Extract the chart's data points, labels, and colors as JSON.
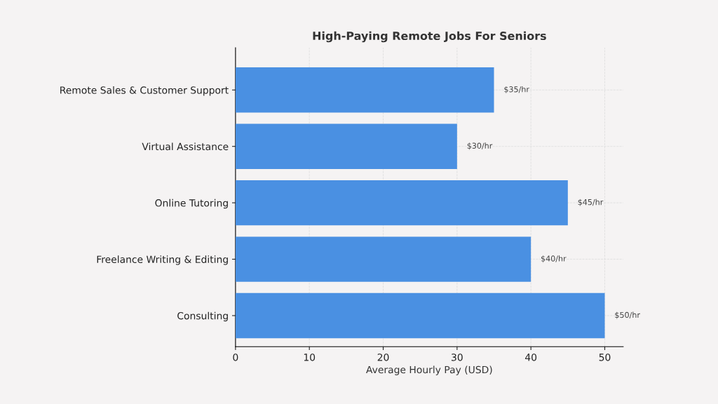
{
  "chart_data": {
    "type": "bar",
    "orientation": "horizontal",
    "title": "High-Paying Remote Jobs For Seniors",
    "xlabel": "Average Hourly Pay (USD)",
    "categories": [
      "Remote Sales & Customer Support",
      "Virtual Assistance",
      "Online Tutoring",
      "Freelance Writing & Editing",
      "Consulting"
    ],
    "values": [
      35,
      30,
      45,
      40,
      50
    ],
    "value_labels": [
      "$35/hr",
      "$30/hr",
      "$45/hr",
      "$40/hr",
      "$50/hr"
    ],
    "color": "#4a90e2",
    "xlim": [
      0,
      52.5
    ],
    "xticks": [
      0,
      10,
      20,
      30,
      40,
      50
    ],
    "grid": true
  }
}
